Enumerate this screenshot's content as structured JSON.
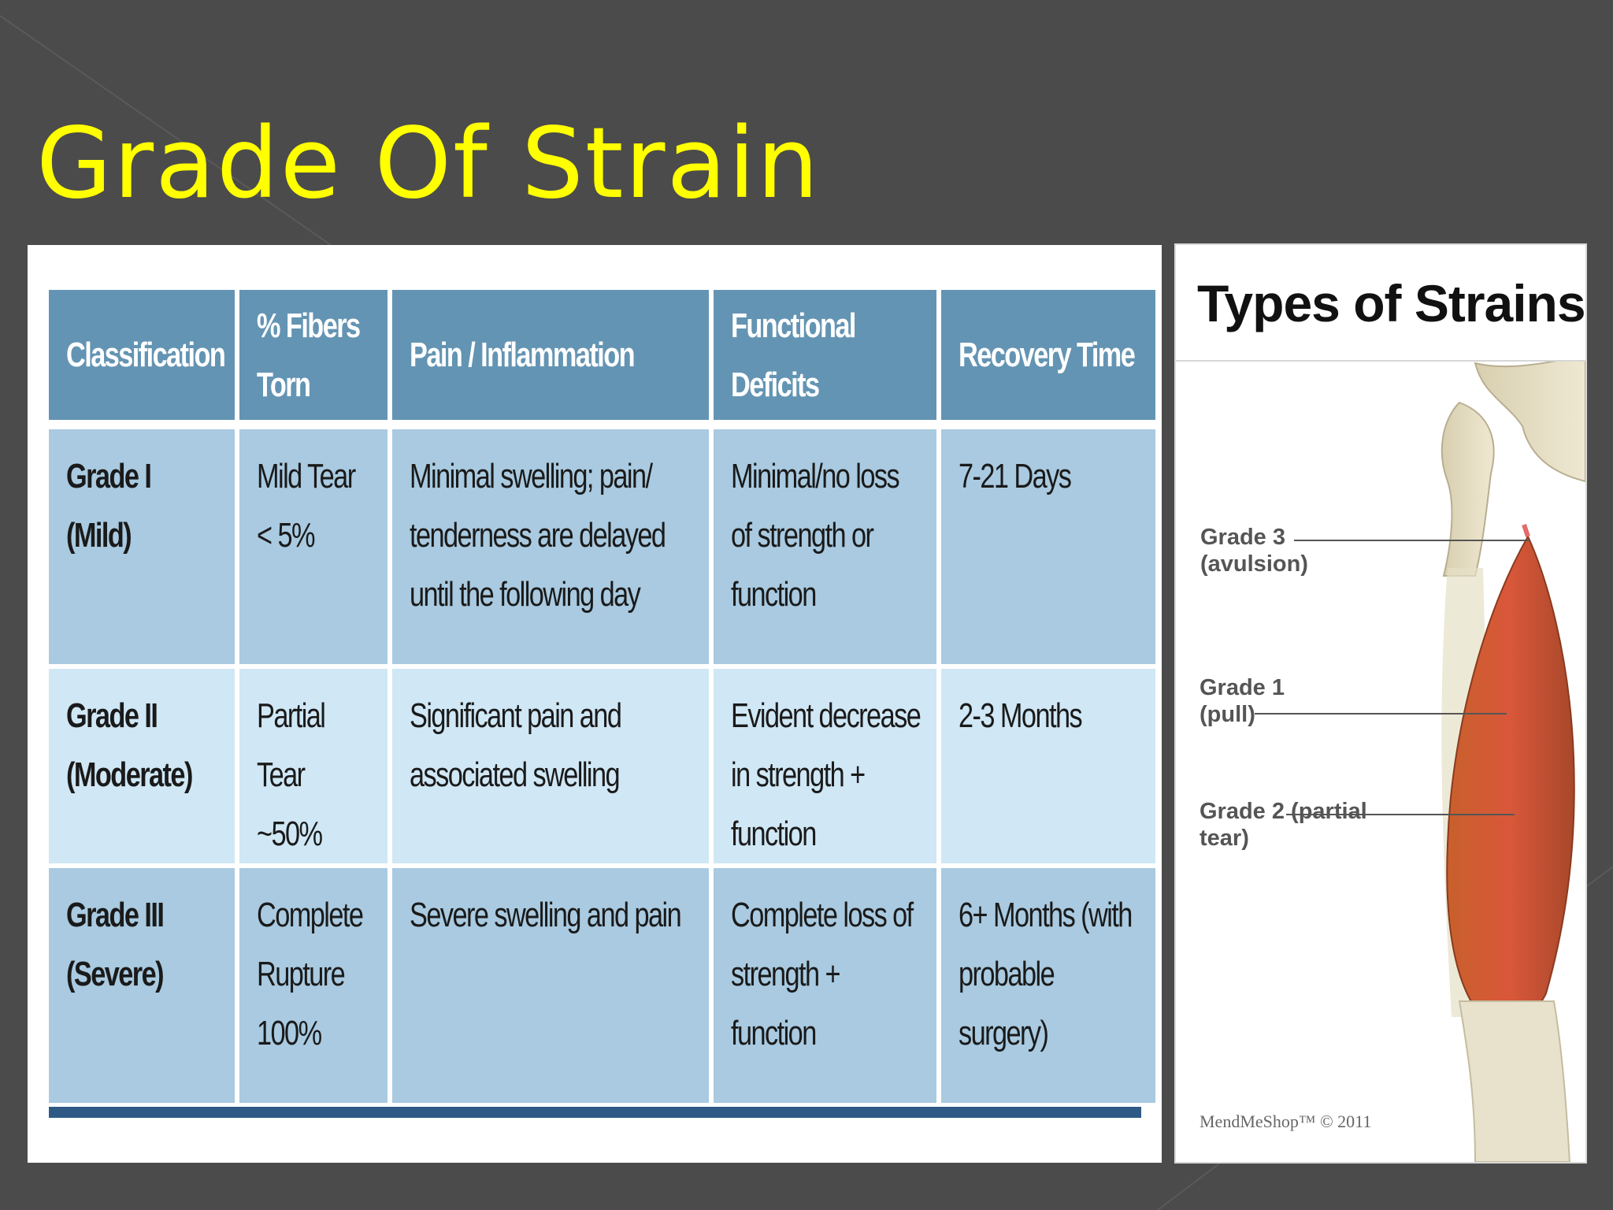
{
  "slide": {
    "title": "Grade Of Strain",
    "accent_color": "#ffff00",
    "background_color": "#4b4b4b"
  },
  "table": {
    "header_color": "#6494b3",
    "row_color_dark": "#a9cae0",
    "row_color_light": "#d0e7f5",
    "headers": [
      "Classification",
      "% Fibers Torn",
      "Pain / Inflammation",
      "Functional Deficits",
      "Recovery Time"
    ],
    "rows": [
      {
        "classification": "Grade I (Mild)",
        "fibers": "Mild Tear < 5%",
        "pain": "Minimal swelling; pain/ tenderness are delayed until the following day",
        "deficits": "Minimal/no loss of strength or function",
        "recovery": "7-21 Days"
      },
      {
        "classification": "Grade II (Moderate)",
        "fibers": "Partial Tear ~50%",
        "pain": "Significant pain and associated swelling",
        "deficits": "Evident decrease in strength + function",
        "recovery": "2-3 Months"
      },
      {
        "classification": "Grade III (Severe)",
        "fibers": "Complete Rupture 100%",
        "pain": "Severe swelling and pain",
        "deficits": "Complete loss of strength + function",
        "recovery": "6+ Months (with probable surgery)"
      }
    ]
  },
  "figure": {
    "title": "Types of Strains",
    "labels": {
      "grade3": "Grade 3 (avulsion)",
      "grade1": "Grade 1 (pull)",
      "grade2": "Grade 2 (partial tear)"
    },
    "brand": "MendMeShop™ © 2011"
  }
}
